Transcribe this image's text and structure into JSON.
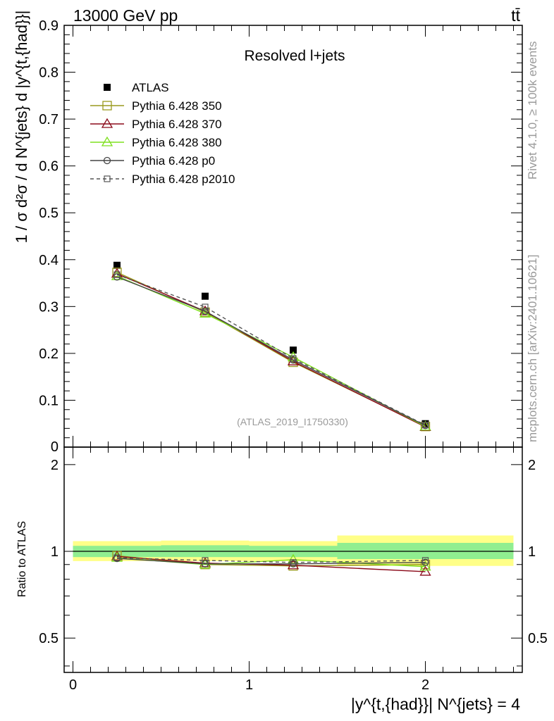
{
  "header": {
    "left": "13000 GeV pp",
    "right": "tt̄",
    "side_top": "Rivet 4.1.0, ≥ 100k events",
    "side_bottom": "mcplots.cern.ch [arXiv:2401.10621]"
  },
  "chart_data": [
    {
      "type": "line",
      "panel": "main",
      "title": "Resolved l+jets",
      "watermark": "(ATLAS_2019_I1750330)",
      "ylabel": "1 / σ d²σ / d N^{jets} d |y^{t,{had}}|",
      "xlim": [
        -0.05,
        2.55
      ],
      "ylim": [
        0,
        0.9
      ],
      "yticks": [
        {
          "v": 0.1,
          "label": "0.1"
        },
        {
          "v": 0.2,
          "label": "0.2"
        },
        {
          "v": 0.3,
          "label": "0.3"
        },
        {
          "v": 0.4,
          "label": "0.4"
        },
        {
          "v": 0.5,
          "label": "0.5"
        },
        {
          "v": 0.6,
          "label": "0.6"
        },
        {
          "v": 0.7,
          "label": "0.7"
        },
        {
          "v": 0.8,
          "label": "0.8"
        },
        {
          "v": 0.9,
          "label": "0.9"
        }
      ],
      "y_axis_cut_label": "0",
      "x": [
        0.25,
        0.75,
        1.25,
        2.0
      ],
      "series": [
        {
          "name": "ATLAS",
          "color": "#000000",
          "marker": "filled-square",
          "dash": "none",
          "values": [
            0.388,
            0.322,
            0.207,
            0.05
          ]
        },
        {
          "name": "Pythia 6.428 350",
          "color": "#9a9a1e",
          "marker": "open-square",
          "dash": "solid",
          "values": [
            0.373,
            0.288,
            0.181,
            0.044
          ]
        },
        {
          "name": "Pythia 6.428 370",
          "color": "#8b0a1a",
          "marker": "open-triangle",
          "dash": "solid",
          "values": [
            0.37,
            0.29,
            0.183,
            0.043
          ]
        },
        {
          "name": "Pythia 6.428 380",
          "color": "#7fe01e",
          "marker": "open-triangle",
          "dash": "solid",
          "values": [
            0.365,
            0.285,
            0.192,
            0.044
          ]
        },
        {
          "name": "Pythia 6.428 p0",
          "color": "#444444",
          "marker": "open-circle",
          "dash": "solid",
          "values": [
            0.363,
            0.29,
            0.186,
            0.046
          ]
        },
        {
          "name": "Pythia 6.428 p2010",
          "color": "#555555",
          "marker": "open-square-small",
          "dash": "dashed",
          "values": [
            0.368,
            0.299,
            0.189,
            0.047
          ]
        }
      ]
    },
    {
      "type": "line",
      "panel": "ratio",
      "ylabel": "Ratio to ATLAS",
      "xlabel": "|y^{t,{had}}| N^{jets} = 4",
      "xlim": [
        -0.05,
        2.55
      ],
      "ylim": [
        0.38,
        2.3
      ],
      "log_scale": true,
      "yticks": [
        {
          "v": 0.5,
          "label": "0.5"
        },
        {
          "v": 1,
          "label": "1"
        },
        {
          "v": 2,
          "label": "2"
        }
      ],
      "xticks": [
        {
          "v": 0,
          "label": "0"
        },
        {
          "v": 1,
          "label": "1"
        },
        {
          "v": 2,
          "label": "2"
        }
      ],
      "bins": [
        [
          0,
          0.5
        ],
        [
          0.5,
          1.0
        ],
        [
          1.0,
          1.5
        ],
        [
          1.5,
          2.5
        ]
      ],
      "band_inner": [
        [
          0.955,
          1.045
        ],
        [
          0.955,
          1.05
        ],
        [
          0.955,
          1.045
        ],
        [
          0.94,
          1.07
        ]
      ],
      "band_outer": [
        [
          0.925,
          1.085
        ],
        [
          0.925,
          1.09
        ],
        [
          0.925,
          1.085
        ],
        [
          0.89,
          1.135
        ]
      ],
      "band_inner_color": "#90ee90",
      "band_outer_color": "#ffff88",
      "x": [
        0.25,
        0.75,
        1.25,
        2.0
      ],
      "series": [
        {
          "name": "Pythia 6.428 350",
          "values": [
            0.965,
            0.9,
            0.89,
            0.9
          ]
        },
        {
          "name": "Pythia 6.428 370",
          "values": [
            0.96,
            0.91,
            0.895,
            0.85
          ]
        },
        {
          "name": "Pythia 6.428 380",
          "values": [
            0.95,
            0.9,
            0.935,
            0.885
          ]
        },
        {
          "name": "Pythia 6.428 p0",
          "values": [
            0.945,
            0.905,
            0.905,
            0.915
          ]
        },
        {
          "name": "Pythia 6.428 p2010",
          "values": [
            0.95,
            0.93,
            0.915,
            0.93
          ]
        }
      ]
    }
  ]
}
